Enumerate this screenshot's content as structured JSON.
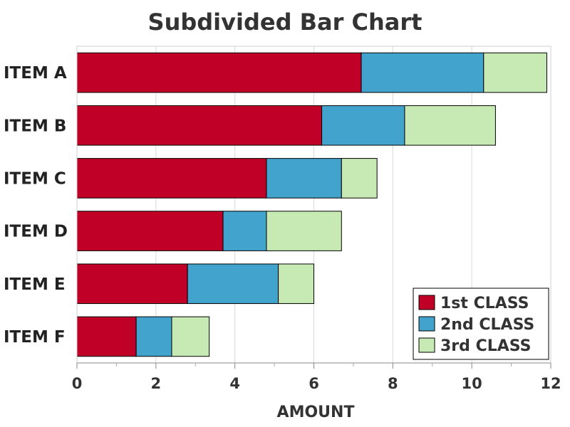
{
  "chart_data": {
    "type": "bar",
    "orientation": "horizontal",
    "stacked": true,
    "title": "Subdivided Bar Chart",
    "xlabel": "AMOUNT",
    "ylabel": "",
    "xlim": [
      0,
      12
    ],
    "xticks": [
      0,
      2,
      4,
      6,
      8,
      10,
      12
    ],
    "grid": true,
    "legend_position": "bottom-right",
    "categories": [
      "ITEM A",
      "ITEM B",
      "ITEM C",
      "ITEM D",
      "ITEM E",
      "ITEM F"
    ],
    "series": [
      {
        "name": "1st CLASS",
        "color": "#c00026",
        "values": [
          7.2,
          6.2,
          4.8,
          3.7,
          2.8,
          1.5
        ]
      },
      {
        "name": "2nd CLASS",
        "color": "#42a3cd",
        "values": [
          3.1,
          2.1,
          1.9,
          1.1,
          2.3,
          0.9
        ]
      },
      {
        "name": "3rd CLASS",
        "color": "#c7eab4",
        "values": [
          1.6,
          2.3,
          0.9,
          1.9,
          0.9,
          0.95
        ]
      }
    ]
  }
}
